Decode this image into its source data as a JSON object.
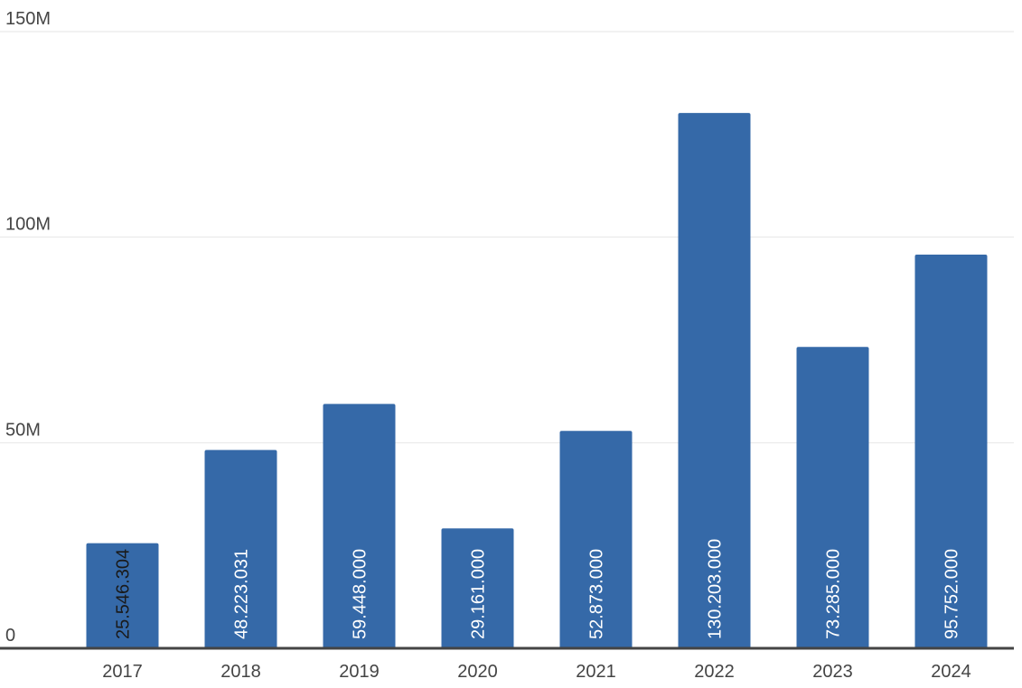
{
  "chart_data": {
    "type": "bar",
    "categories": [
      "2017",
      "2018",
      "2019",
      "2020",
      "2021",
      "2022",
      "2023",
      "2024"
    ],
    "values": [
      25546304,
      48223031,
      59448000,
      29161000,
      52873000,
      130203000,
      73285000,
      95752000
    ],
    "value_labels": [
      "25.546.304",
      "48.223.031",
      "59.448.000",
      "29.161.000",
      "52.873.000",
      "130.203.000",
      "73.285.000",
      "95.752.000"
    ],
    "y_ticks": [
      {
        "value": 0,
        "label": "0"
      },
      {
        "value": 50000000,
        "label": "50M"
      },
      {
        "value": 100000000,
        "label": "100M"
      },
      {
        "value": 150000000,
        "label": "150M"
      }
    ],
    "ylim": [
      0,
      150000000
    ],
    "grid": true,
    "title": "",
    "xlabel": "",
    "ylabel": "",
    "colors": {
      "bar": "#3569a8",
      "grid": "#e6e6e6",
      "axis": "#444444",
      "label_inside": "#ffffff",
      "label_outside": "#1a1a1a"
    }
  }
}
